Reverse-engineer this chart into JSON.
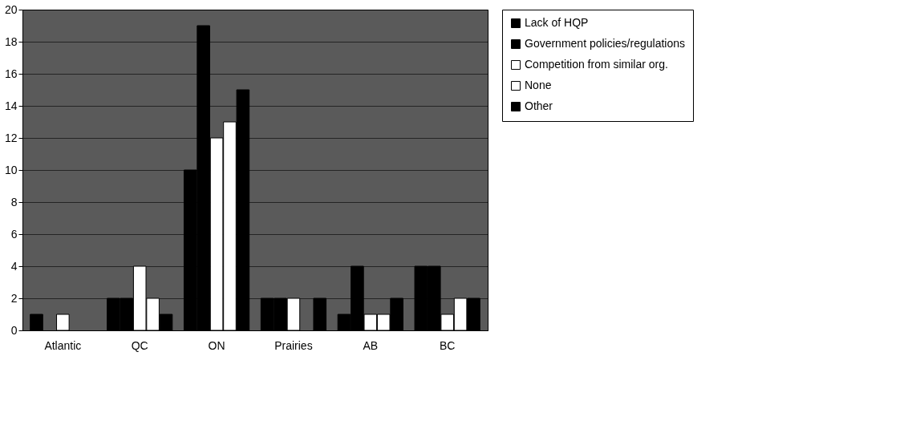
{
  "chart_data": {
    "type": "bar",
    "categories": [
      "Atlantic",
      "QC",
      "ON",
      "Prairies",
      "AB",
      "BC"
    ],
    "series": [
      {
        "name": "Lack of HQP",
        "color": "#000000",
        "values": [
          1,
          2,
          10,
          2,
          1,
          4
        ]
      },
      {
        "name": "Government policies/regulations",
        "color": "#000000",
        "values": [
          0,
          2,
          19,
          2,
          4,
          4
        ]
      },
      {
        "name": "Competition from similar org.",
        "color": "#ffffff",
        "values": [
          1,
          4,
          12,
          2,
          1,
          1
        ]
      },
      {
        "name": "None",
        "color": "#ffffff",
        "values": [
          0,
          2,
          13,
          0,
          1,
          2
        ]
      },
      {
        "name": "Other",
        "color": "#000000",
        "values": [
          0,
          1,
          15,
          2,
          2,
          2
        ]
      }
    ],
    "ylim": [
      0,
      20
    ],
    "yticks": [
      0,
      2,
      4,
      6,
      8,
      10,
      12,
      14,
      16,
      18,
      20
    ],
    "grid": "y",
    "legend": "right"
  }
}
